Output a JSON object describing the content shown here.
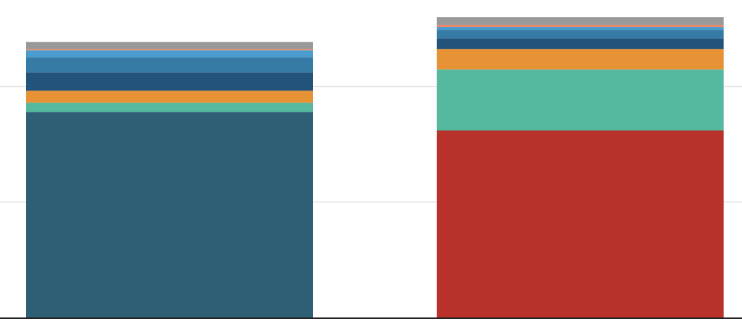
{
  "chart_data": {
    "type": "bar",
    "stacked": true,
    "categories": [
      null,
      null
    ],
    "series": [
      {
        "color": "#2f5f75",
        "values": [
          178,
          0
        ]
      },
      {
        "color": "#b8312a",
        "values": [
          0,
          162
        ]
      },
      {
        "color": "#55b9a0",
        "values": [
          8,
          52.8
        ]
      },
      {
        "color": "#e89236",
        "values": [
          10.4,
          17.8
        ]
      },
      {
        "color": "#22537a",
        "values": [
          16,
          9.2
        ]
      },
      {
        "color": "#357ba6",
        "values": [
          12.9,
          7.4
        ]
      },
      {
        "color": "#4a9ccf",
        "values": [
          6.1,
          2.5
        ]
      },
      {
        "color": "#e8876a",
        "values": [
          1.2,
          1.8
        ]
      },
      {
        "color": "#999999",
        "values": [
          6.1,
          6.7
        ]
      }
    ],
    "ylim": [
      0,
      275
    ],
    "yticks": [
      100,
      200
    ],
    "grid": true
  }
}
